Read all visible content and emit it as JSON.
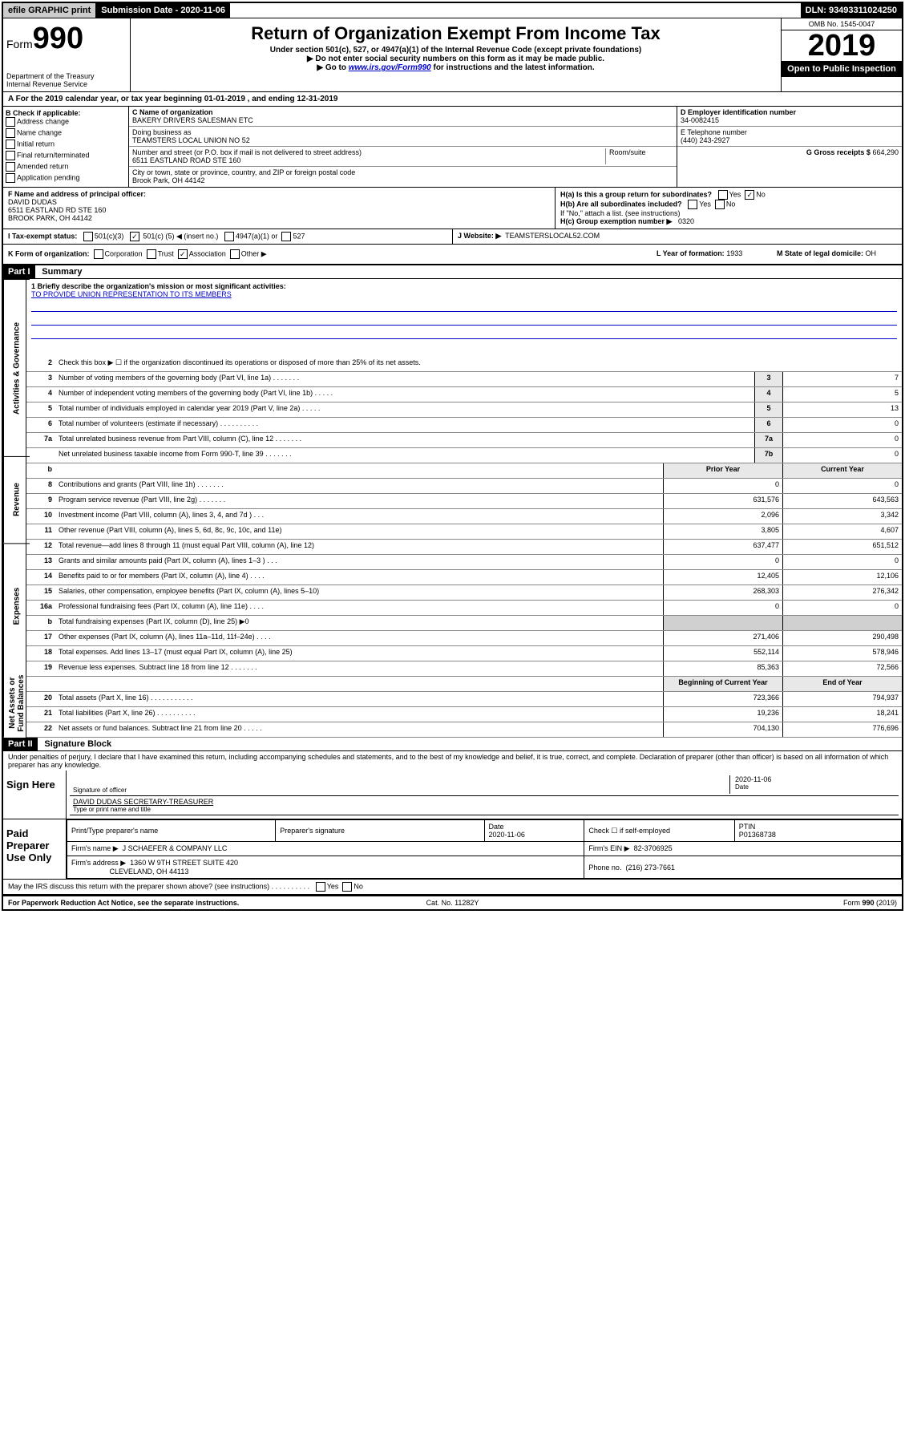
{
  "topbar": {
    "efile": "efile GRAPHIC print",
    "submission_label": "Submission Date - 2020-11-06",
    "dln": "DLN: 93493311024250"
  },
  "header": {
    "form_prefix": "Form",
    "form_number": "990",
    "dept": "Department of the Treasury",
    "irs": "Internal Revenue Service",
    "title": "Return of Organization Exempt From Income Tax",
    "sub1": "Under section 501(c), 527, or 4947(a)(1) of the Internal Revenue Code (except private foundations)",
    "sub2": "▶ Do not enter social security numbers on this form as it may be made public.",
    "sub3_pre": "▶ Go to ",
    "sub3_link": "www.irs.gov/Form990",
    "sub3_post": " for instructions and the latest information.",
    "omb": "OMB No. 1545-0047",
    "year": "2019",
    "open": "Open to Public Inspection"
  },
  "period": {
    "text_pre": "A For the 2019 calendar year, or tax year beginning ",
    "begin": "01-01-2019",
    "text_mid": " , and ending ",
    "end": "12-31-2019"
  },
  "box_b": {
    "label": "B Check if applicable:",
    "items": [
      "Address change",
      "Name change",
      "Initial return",
      "Final return/terminated",
      "Amended return",
      "Application pending"
    ]
  },
  "box_c": {
    "name_label": "C Name of organization",
    "name": "BAKERY DRIVERS SALESMAN ETC",
    "dba_label": "Doing business as",
    "dba": "TEAMSTERS LOCAL UNION NO 52",
    "addr_label": "Number and street (or P.O. box if mail is not delivered to street address)",
    "room_label": "Room/suite",
    "addr": "6511 EASTLAND ROAD STE 160",
    "city_label": "City or town, state or province, country, and ZIP or foreign postal code",
    "city": "Brook Park, OH  44142"
  },
  "box_de": {
    "ein_label": "D Employer identification number",
    "ein": "34-0082415",
    "phone_label": "E Telephone number",
    "phone": "(440) 243-2927",
    "gross_label": "G Gross receipts $",
    "gross": "664,290"
  },
  "box_f": {
    "label": "F Name and address of principal officer:",
    "name": "DAVID DUDAS",
    "addr1": "6511 EASTLAND RD STE 160",
    "addr2": "BROOK PARK, OH  44142"
  },
  "box_h": {
    "ha_label": "H(a) Is this a group return for subordinates?",
    "ha_yes": "Yes",
    "ha_no": "No",
    "hb_label": "H(b) Are all subordinates included?",
    "hb_yes": "Yes",
    "hb_no": "No",
    "hb_note": "If \"No,\" attach a list. (see instructions)",
    "hc_label": "H(c) Group exemption number ▶",
    "hc_val": "0320"
  },
  "box_i": {
    "label": "I Tax-exempt status:",
    "opt1": "501(c)(3)",
    "opt2_pre": "501(c) (",
    "opt2_val": "5",
    "opt2_post": ") ◀ (insert no.)",
    "opt3": "4947(a)(1) or",
    "opt4": "527"
  },
  "box_j": {
    "label": "J Website: ▶",
    "val": "TEAMSTERSLOCAL52.COM"
  },
  "box_k": {
    "label": "K Form of organization:",
    "opts": [
      "Corporation",
      "Trust",
      "Association",
      "Other ▶"
    ],
    "l_label": "L Year of formation:",
    "l_val": "1933",
    "m_label": "M State of legal domicile:",
    "m_val": "OH"
  },
  "part1": {
    "header": "Part I",
    "title": "Summary",
    "mission_label": "1 Briefly describe the organization's mission or most significant activities:",
    "mission": "TO PROVIDE UNION REPRESENTATION TO ITS MEMBERS",
    "line2": "Check this box ▶ ☐ if the organization discontinued its operations or disposed of more than 25% of its net assets.",
    "sides": {
      "gov": "Activities & Governance",
      "rev": "Revenue",
      "exp": "Expenses",
      "net": "Net Assets or Fund Balances"
    },
    "col_prior": "Prior Year",
    "col_current": "Current Year",
    "col_begin": "Beginning of Current Year",
    "col_end": "End of Year",
    "lines_gov": [
      {
        "n": "3",
        "d": "Number of voting members of the governing body (Part VI, line 1a)   .    .    .    .    .    .    .",
        "b": "3",
        "v": "7"
      },
      {
        "n": "4",
        "d": "Number of independent voting members of the governing body (Part VI, line 1b)   .    .    .    .    .",
        "b": "4",
        "v": "5"
      },
      {
        "n": "5",
        "d": "Total number of individuals employed in calendar year 2019 (Part V, line 2a)   .    .    .    .    .",
        "b": "5",
        "v": "13"
      },
      {
        "n": "6",
        "d": "Total number of volunteers (estimate if necessary)   .    .    .    .    .    .    .    .    .    .",
        "b": "6",
        "v": "0"
      },
      {
        "n": "7a",
        "d": "Total unrelated business revenue from Part VIII, column (C), line 12   .    .    .    .    .    .    .",
        "b": "7a",
        "v": "0"
      },
      {
        "n": "",
        "d": "Net unrelated business taxable income from Form 990-T, line 39   .    .    .    .    .    .    .",
        "b": "7b",
        "v": "0"
      }
    ],
    "lines_rev": [
      {
        "n": "8",
        "d": "Contributions and grants (Part VIII, line 1h)   .    .    .    .    .    .    .",
        "p": "0",
        "c": "0"
      },
      {
        "n": "9",
        "d": "Program service revenue (Part VIII, line 2g)   .    .    .    .    .    .    .",
        "p": "631,576",
        "c": "643,563"
      },
      {
        "n": "10",
        "d": "Investment income (Part VIII, column (A), lines 3, 4, and 7d )   .    .    .",
        "p": "2,096",
        "c": "3,342"
      },
      {
        "n": "11",
        "d": "Other revenue (Part VIII, column (A), lines 5, 6d, 8c, 9c, 10c, and 11e)",
        "p": "3,805",
        "c": "4,607"
      },
      {
        "n": "12",
        "d": "Total revenue—add lines 8 through 11 (must equal Part VIII, column (A), line 12)",
        "p": "637,477",
        "c": "651,512"
      }
    ],
    "lines_exp": [
      {
        "n": "13",
        "d": "Grants and similar amounts paid (Part IX, column (A), lines 1–3 )   .    .    .",
        "p": "0",
        "c": "0"
      },
      {
        "n": "14",
        "d": "Benefits paid to or for members (Part IX, column (A), line 4)   .    .    .    .",
        "p": "12,405",
        "c": "12,106"
      },
      {
        "n": "15",
        "d": "Salaries, other compensation, employee benefits (Part IX, column (A), lines 5–10)",
        "p": "268,303",
        "c": "276,342"
      },
      {
        "n": "16a",
        "d": "Professional fundraising fees (Part IX, column (A), line 11e)   .    .    .    .",
        "p": "0",
        "c": "0"
      },
      {
        "n": "b",
        "d": "Total fundraising expenses (Part IX, column (D), line 25) ▶0",
        "p": "",
        "c": "",
        "grey": true
      },
      {
        "n": "17",
        "d": "Other expenses (Part IX, column (A), lines 11a–11d, 11f–24e)   .    .    .    .",
        "p": "271,406",
        "c": "290,498"
      },
      {
        "n": "18",
        "d": "Total expenses. Add lines 13–17 (must equal Part IX, column (A), line 25)",
        "p": "552,114",
        "c": "578,946"
      },
      {
        "n": "19",
        "d": "Revenue less expenses. Subtract line 18 from line 12   .    .    .    .    .    .    .",
        "p": "85,363",
        "c": "72,566"
      }
    ],
    "lines_net": [
      {
        "n": "20",
        "d": "Total assets (Part X, line 16)   .    .    .    .    .    .    .    .    .    .    .",
        "p": "723,366",
        "c": "794,937"
      },
      {
        "n": "21",
        "d": "Total liabilities (Part X, line 26)   .    .    .    .    .    .    .    .    .    .",
        "p": "19,236",
        "c": "18,241"
      },
      {
        "n": "22",
        "d": "Net assets or fund balances. Subtract line 21 from line 20   .    .    .    .    .",
        "p": "704,130",
        "c": "776,696"
      }
    ]
  },
  "part2": {
    "header": "Part II",
    "title": "Signature Block",
    "declaration": "Under penalties of perjury, I declare that I have examined this return, including accompanying schedules and statements, and to the best of my knowledge and belief, it is true, correct, and complete. Declaration of preparer (other than officer) is based on all information of which preparer has any knowledge.",
    "sign_here": "Sign Here",
    "sig_officer_label": "Signature of officer",
    "sig_date": "2020-11-06",
    "sig_date_label": "Date",
    "officer_name": "DAVID DUDAS SECRETARY-TREASURER",
    "officer_name_label": "Type or print name and title",
    "paid": "Paid Preparer Use Only",
    "prep_name_label": "Print/Type preparer's name",
    "prep_sig_label": "Preparer's signature",
    "prep_date_label": "Date",
    "prep_date": "2020-11-06",
    "check_label": "Check ☐ if self-employed",
    "ptin_label": "PTIN",
    "ptin": "P01368738",
    "firm_name_label": "Firm's name    ▶",
    "firm_name": "J SCHAEFER & COMPANY LLC",
    "firm_ein_label": "Firm's EIN ▶",
    "firm_ein": "82-3706925",
    "firm_addr_label": "Firm's address ▶",
    "firm_addr1": "1360 W 9TH STREET SUITE 420",
    "firm_addr2": "CLEVELAND, OH  44113",
    "firm_phone_label": "Phone no.",
    "firm_phone": "(216) 273-7661",
    "discuss": "May the IRS discuss this return with the preparer shown above? (see instructions)    .    .    .    .    .    .    .    .    .    .",
    "discuss_yes": "Yes",
    "discuss_no": "No"
  },
  "footer": {
    "left": "For Paperwork Reduction Act Notice, see the separate instructions.",
    "center": "Cat. No. 11282Y",
    "right_pre": "Form ",
    "right_form": "990",
    "right_post": " (2019)"
  }
}
